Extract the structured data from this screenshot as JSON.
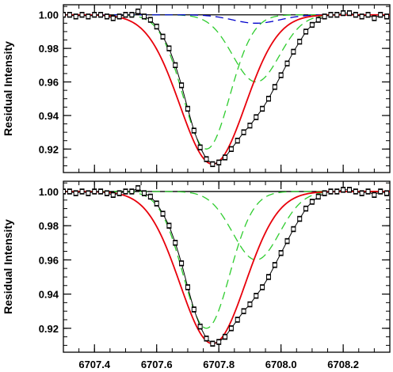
{
  "chart_data": [
    {
      "type": "line",
      "ylabel": "Residual Intensity",
      "xlim": [
        6707.3,
        6708.35
      ],
      "ylim": [
        0.906,
        1.006
      ],
      "x_ticks": [
        6707.4,
        6707.6,
        6707.8,
        6708.0,
        6708.2
      ],
      "y_ticks": [
        0.92,
        0.94,
        0.96,
        0.98,
        1.0
      ],
      "y_tick_labels": [
        "0.92",
        "0.94",
        "0.96",
        "0.98",
        "1.00"
      ],
      "observed": {
        "x": [
          6707.3,
          6707.32,
          6707.34,
          6707.36,
          6707.38,
          6707.4,
          6707.42,
          6707.44,
          6707.46,
          6707.48,
          6707.5,
          6707.52,
          6707.54,
          6707.56,
          6707.58,
          6707.6,
          6707.62,
          6707.64,
          6707.66,
          6707.68,
          6707.7,
          6707.72,
          6707.74,
          6707.76,
          6707.78,
          6707.8,
          6707.82,
          6707.84,
          6707.86,
          6707.88,
          6707.9,
          6707.92,
          6707.94,
          6707.96,
          6707.98,
          6708.0,
          6708.02,
          6708.04,
          6708.06,
          6708.08,
          6708.1,
          6708.12,
          6708.14,
          6708.16,
          6708.18,
          6708.2,
          6708.22,
          6708.24,
          6708.26,
          6708.28,
          6708.3,
          6708.32,
          6708.34
        ],
        "y": [
          1.0,
          1.0,
          0.999,
          1.0,
          0.999,
          1.0,
          1.0,
          0.999,
          0.998,
          0.999,
          1.0,
          1.0,
          1.002,
          0.999,
          0.997,
          0.993,
          0.987,
          0.98,
          0.97,
          0.958,
          0.944,
          0.931,
          0.921,
          0.914,
          0.911,
          0.912,
          0.915,
          0.92,
          0.925,
          0.93,
          0.934,
          0.939,
          0.944,
          0.95,
          0.957,
          0.964,
          0.971,
          0.978,
          0.984,
          0.99,
          0.994,
          0.997,
          0.999,
          1.0,
          1.0,
          1.001,
          1.001,
          1.0,
          0.999,
          1.0,
          0.998,
          1.0,
          0.999
        ],
        "err": 0.0015
      },
      "series": [
        {
          "name": "",
          "role": "fit",
          "color": "#e8000b",
          "dash": "solid",
          "center": 6707.78,
          "depth": 0.089,
          "sigma": 0.105
        },
        {
          "name": "",
          "role": "component-1",
          "color": "#2ecc2e",
          "dash": "dashed",
          "center": 6707.76,
          "depth": 0.08,
          "sigma": 0.075
        },
        {
          "name": "",
          "role": "component-2",
          "color": "#2ecc2e",
          "dash": "dashed",
          "center": 6707.92,
          "depth": 0.04,
          "sigma": 0.075
        },
        {
          "name": "",
          "role": "component-3",
          "color": "#0000cc",
          "dash": "dashed",
          "center": 6707.92,
          "depth": 0.005,
          "sigma": 0.075
        }
      ],
      "continuum": 1.0
    },
    {
      "type": "line",
      "ylabel": "Residual Intensity",
      "xlim": [
        6707.3,
        6708.35
      ],
      "ylim": [
        0.906,
        1.006
      ],
      "x_ticks": [
        6707.4,
        6707.6,
        6707.8,
        6708.0,
        6708.2
      ],
      "x_tick_labels": [
        "6707.4",
        "6707.6",
        "6707.8",
        "6708.0",
        "6708.2"
      ],
      "y_ticks": [
        0.92,
        0.94,
        0.96,
        0.98,
        1.0
      ],
      "y_tick_labels": [
        "0.92",
        "0.94",
        "0.96",
        "0.98",
        "1.00"
      ],
      "observed": {
        "x": [
          6707.3,
          6707.32,
          6707.34,
          6707.36,
          6707.38,
          6707.4,
          6707.42,
          6707.44,
          6707.46,
          6707.48,
          6707.5,
          6707.52,
          6707.54,
          6707.56,
          6707.58,
          6707.6,
          6707.62,
          6707.64,
          6707.66,
          6707.68,
          6707.7,
          6707.72,
          6707.74,
          6707.76,
          6707.78,
          6707.8,
          6707.82,
          6707.84,
          6707.86,
          6707.88,
          6707.9,
          6707.92,
          6707.94,
          6707.96,
          6707.98,
          6708.0,
          6708.02,
          6708.04,
          6708.06,
          6708.08,
          6708.1,
          6708.12,
          6708.14,
          6708.16,
          6708.18,
          6708.2,
          6708.22,
          6708.24,
          6708.26,
          6708.28,
          6708.3,
          6708.32,
          6708.34
        ],
        "y": [
          1.0,
          1.0,
          0.999,
          1.0,
          0.999,
          1.0,
          1.0,
          0.999,
          0.998,
          0.999,
          1.0,
          1.0,
          1.002,
          0.999,
          0.997,
          0.993,
          0.987,
          0.98,
          0.97,
          0.958,
          0.944,
          0.931,
          0.921,
          0.914,
          0.911,
          0.912,
          0.915,
          0.92,
          0.925,
          0.93,
          0.934,
          0.939,
          0.944,
          0.95,
          0.957,
          0.964,
          0.971,
          0.978,
          0.984,
          0.99,
          0.994,
          0.997,
          0.999,
          1.0,
          1.0,
          1.001,
          1.001,
          1.0,
          0.999,
          1.0,
          0.998,
          1.0,
          0.999
        ],
        "err": 0.0015
      },
      "series": [
        {
          "name": "",
          "role": "fit",
          "color": "#e8000b",
          "dash": "solid",
          "center": 6707.78,
          "depth": 0.089,
          "sigma": 0.105
        },
        {
          "name": "",
          "role": "component-1",
          "color": "#2ecc2e",
          "dash": "dashed",
          "center": 6707.76,
          "depth": 0.08,
          "sigma": 0.075
        },
        {
          "name": "",
          "role": "component-2",
          "color": "#2ecc2e",
          "dash": "dashed",
          "center": 6707.92,
          "depth": 0.04,
          "sigma": 0.075
        }
      ],
      "continuum": 1.0
    }
  ]
}
